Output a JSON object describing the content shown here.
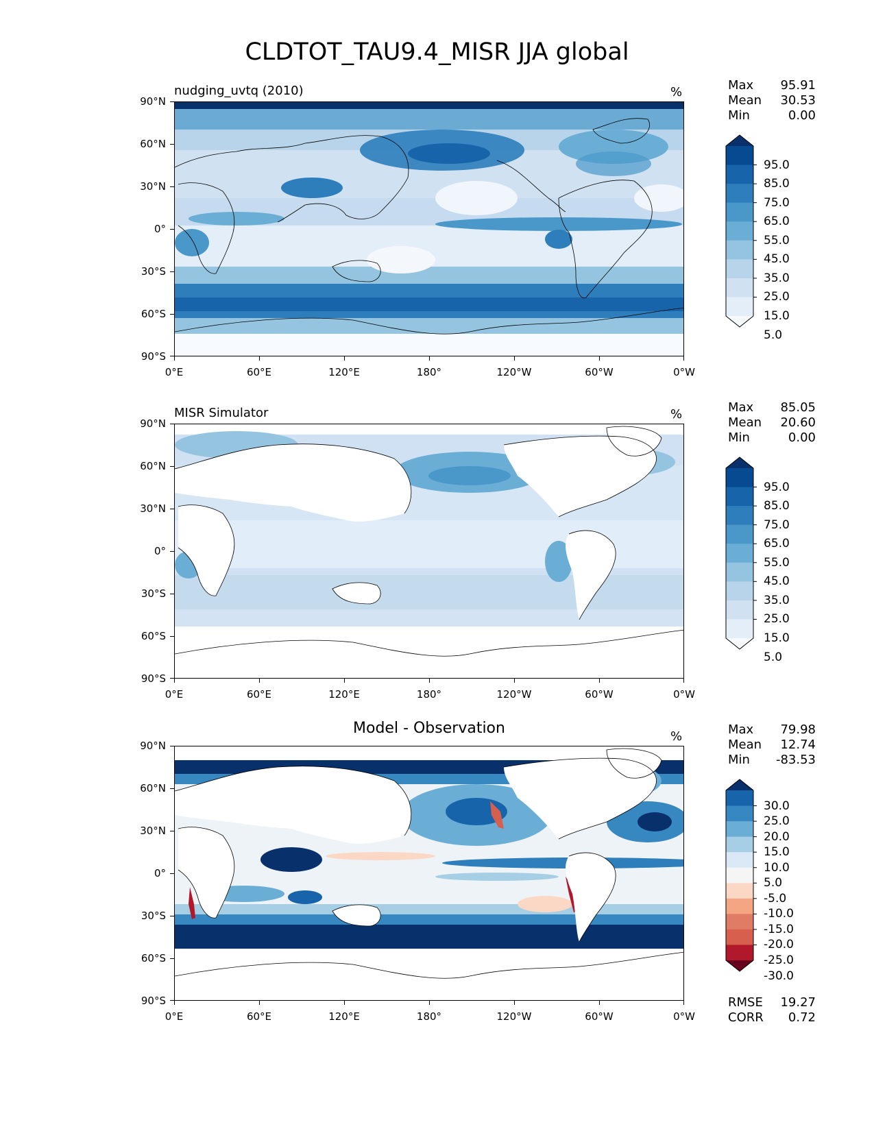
{
  "title": "CLDTOT_TAU9.4_MISR JJA global",
  "x_ticks": [
    "0°E",
    "60°E",
    "120°E",
    "180°",
    "120°W",
    "60°W",
    "0°W"
  ],
  "y_ticks": [
    "90°N",
    "60°N",
    "30°N",
    "0°",
    "30°S",
    "60°S",
    "90°S"
  ],
  "panels": [
    {
      "title": "nudging_uvtq (2010)",
      "units": "%",
      "stats": {
        "max_label": "Max",
        "max": "95.91",
        "mean_label": "Mean",
        "mean": "30.53",
        "min_label": "Min",
        "min": "0.00"
      },
      "colorbar": {
        "labels": [
          "95.0",
          "85.0",
          "75.0",
          "65.0",
          "55.0",
          "45.0",
          "35.0",
          "25.0",
          "15.0",
          "5.0"
        ],
        "colors": [
          "#08306b",
          "#084a91",
          "#1764ab",
          "#2e7ebc",
          "#4a98c9",
          "#6aaed6",
          "#94c4df",
          "#b7d4ea",
          "#d0e1f2",
          "#e3eef9",
          "#f7fbff"
        ]
      }
    },
    {
      "title": "MISR Simulator",
      "units": "%",
      "stats": {
        "max_label": "Max",
        "max": "85.05",
        "mean_label": "Mean",
        "mean": "20.60",
        "min_label": "Min",
        "min": "0.00"
      },
      "colorbar": {
        "labels": [
          "95.0",
          "85.0",
          "75.0",
          "65.0",
          "55.0",
          "45.0",
          "35.0",
          "25.0",
          "15.0",
          "5.0"
        ],
        "colors": [
          "#08306b",
          "#084a91",
          "#1764ab",
          "#2e7ebc",
          "#4a98c9",
          "#6aaed6",
          "#94c4df",
          "#b7d4ea",
          "#d0e1f2",
          "#e3eef9",
          "#f7fbff"
        ]
      }
    },
    {
      "title": "Model - Observation",
      "units": "%",
      "stats": {
        "max_label": "Max",
        "max": "79.98",
        "mean_label": "Mean",
        "mean": "12.74",
        "min_label": "Min",
        "min": "-83.53"
      },
      "colorbar": {
        "labels": [
          "30.0",
          "25.0",
          "20.0",
          "15.0",
          "10.0",
          "5.0",
          "-5.0",
          "-10.0",
          "-15.0",
          "-20.0",
          "-25.0",
          "-30.0"
        ],
        "colors": [
          "#08306b",
          "#1764ab",
          "#3787c0",
          "#6aaed6",
          "#a6cee4",
          "#dbe9f6",
          "#f5f5f5",
          "#fbd8c6",
          "#f4a582",
          "#e07b66",
          "#d6604d",
          "#b2182b",
          "#67001f"
        ]
      },
      "extra_stats": {
        "rmse_label": "RMSE",
        "rmse": "19.27",
        "corr_label": "CORR",
        "corr": "0.72"
      }
    }
  ]
}
